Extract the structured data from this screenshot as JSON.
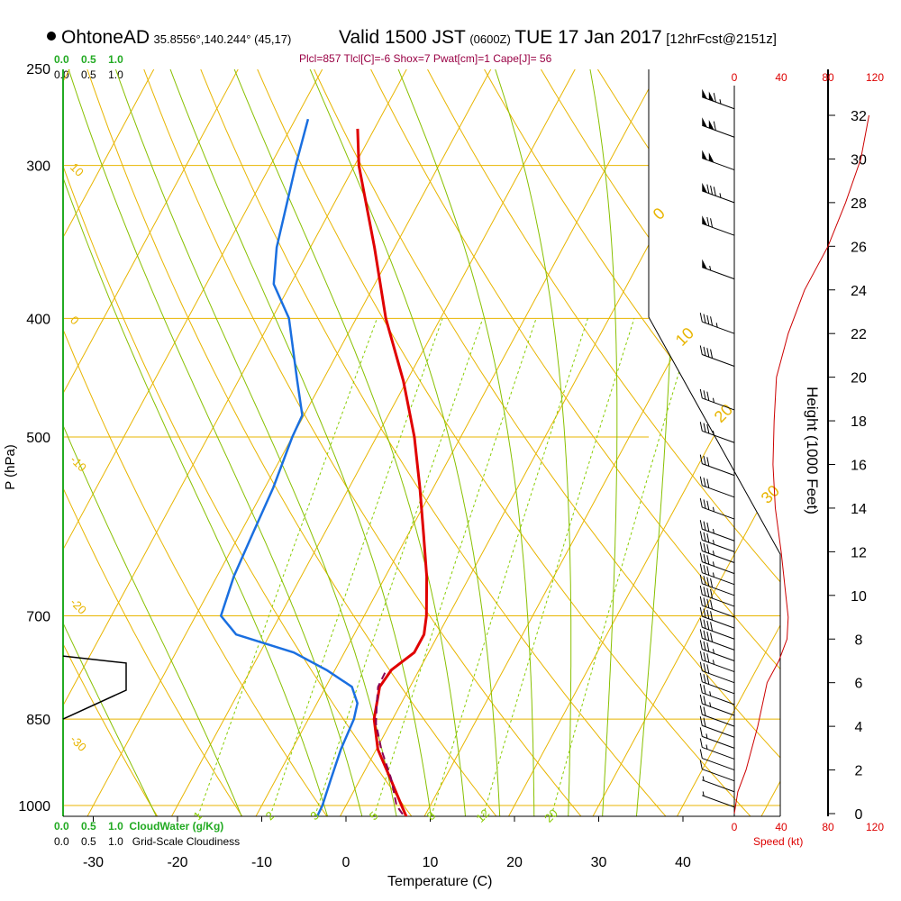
{
  "header": {
    "station": "OhtoneAD",
    "coords": "35.8556°,140.244° (45,17)",
    "valid_prefix": "Valid 1500 JST",
    "valid_utc": "(0600Z)",
    "valid_date": "TUE 17 Jan 2017",
    "forecast": "[12hrFcst@2151z]",
    "indices": "Plcl=857 Tlcl[C]=-6 Shox=7 Pwat[cm]=1 Cape[J]= 56"
  },
  "colors": {
    "isotherm": "#e8b500",
    "dry_adiabat": "#e8b500",
    "moist_adiabat": "#88c000",
    "mixing_ratio": "#88cc00",
    "temperature": "#e00000",
    "dewpoint": "#1a6fe0",
    "parcel": "#880055",
    "cloud": "#22aa22"
  },
  "legend": {
    "cloud_top_scale": [
      "0.0",
      "0.5",
      "1.0"
    ],
    "cloudiness_top_scale": [
      "0.0",
      "0.5",
      "1.0"
    ],
    "cloud_bottom_scale": [
      "0.0",
      "0.5",
      "1.0"
    ],
    "cloud_water_label": "CloudWater (g/Kg)",
    "cloudiness_bottom_scale": [
      "0.0",
      "0.5",
      "1.0"
    ],
    "cloudiness_label": "Grid-Scale Cloudiness",
    "speed_label": "Speed (kt)"
  },
  "chart_data": {
    "type": "line",
    "title": "Skew-T log-P sounding",
    "xlabel": "Temperature (C)",
    "ylabel": "P (hPa)",
    "xlim": [
      -35,
      45
    ],
    "ylim_hpa": [
      1050,
      250
    ],
    "x_ticks": [
      "-30",
      "-20",
      "-10",
      "0",
      "10",
      "20",
      "30",
      "40"
    ],
    "x_tick_values": [
      -30,
      -20,
      -10,
      0,
      10,
      20,
      30,
      40
    ],
    "p_ticks": [
      "250",
      "300",
      "400",
      "500",
      "700",
      "850",
      "1000"
    ],
    "p_tick_values": [
      250,
      300,
      400,
      500,
      700,
      850,
      1000
    ],
    "height_label": "Height (1000 Feet)",
    "height_ticks": [
      "0",
      "2",
      "4",
      "6",
      "8",
      "10",
      "12",
      "14",
      "16",
      "18",
      "20",
      "22",
      "24",
      "26",
      "28",
      "30",
      "32"
    ],
    "height_tick_values": [
      0,
      2,
      4,
      6,
      8,
      10,
      12,
      14,
      16,
      18,
      20,
      22,
      24,
      26,
      28,
      30,
      32
    ],
    "speed_ticks_top": [
      "0",
      "40",
      "80",
      "120"
    ],
    "speed_ticks_bottom": [
      "0",
      "40",
      "80",
      "120"
    ],
    "speed_tick_values": [
      0,
      40,
      80,
      120
    ],
    "isotherm_labels": [
      "10",
      "0",
      "-10",
      "-20",
      "-30"
    ],
    "isotherm_label_values": [
      10,
      0,
      -10,
      -20,
      -30
    ],
    "mixing_ratio_labels": [
      "1",
      "2",
      "3",
      "5",
      "8",
      "12",
      "20"
    ],
    "mixing_ratio_values": [
      1,
      2,
      3,
      5,
      8,
      12,
      20
    ],
    "theta_e_labels": [
      "0",
      "10",
      "20",
      "30"
    ],
    "series": [
      {
        "name": "temperature",
        "points": [
          [
            1035,
            8.7
          ],
          [
            1000,
            6.6
          ],
          [
            950,
            3.5
          ],
          [
            900,
            0.2
          ],
          [
            850,
            -2.2
          ],
          [
            800,
            -3.6
          ],
          [
            775,
            -3.3
          ],
          [
            750,
            -1.7
          ],
          [
            725,
            -1.7
          ],
          [
            700,
            -2.6
          ],
          [
            650,
            -5.1
          ],
          [
            600,
            -8.2
          ],
          [
            550,
            -11.6
          ],
          [
            500,
            -15.5
          ],
          [
            480,
            -17.4
          ],
          [
            450,
            -20.4
          ],
          [
            400,
            -26.5
          ],
          [
            350,
            -32.4
          ],
          [
            300,
            -39.5
          ],
          [
            280,
            -42.0
          ]
        ]
      },
      {
        "name": "dewpoint",
        "points": [
          [
            1035,
            -2.0
          ],
          [
            1025,
            -2.7
          ],
          [
            1000,
            -2.8
          ],
          [
            950,
            -3.5
          ],
          [
            900,
            -4.2
          ],
          [
            850,
            -4.6
          ],
          [
            825,
            -5.2
          ],
          [
            800,
            -6.9
          ],
          [
            775,
            -11.0
          ],
          [
            750,
            -16.0
          ],
          [
            725,
            -24.0
          ],
          [
            700,
            -27.0
          ],
          [
            650,
            -28.0
          ],
          [
            600,
            -28.5
          ],
          [
            550,
            -29.0
          ],
          [
            500,
            -30.0
          ],
          [
            480,
            -30.2
          ],
          [
            450,
            -33.0
          ],
          [
            400,
            -38.0
          ],
          [
            375,
            -42.0
          ],
          [
            350,
            -44.0
          ],
          [
            300,
            -47.0
          ],
          [
            275,
            -48.5
          ]
        ]
      },
      {
        "name": "parcel",
        "points": [
          [
            1035,
            8.7
          ],
          [
            1000,
            6.0
          ],
          [
            950,
            3.6
          ],
          [
            900,
            0.6
          ],
          [
            857,
            -1.7
          ],
          [
            825,
            -2.9
          ],
          [
            800,
            -3.8
          ],
          [
            775,
            -3.9
          ]
        ]
      }
    ],
    "surface_points": {
      "temperature": 8.7,
      "dewpoint": -2.0,
      "pressure": 1035
    },
    "cloudiness": [
      [
        805,
        0.7
      ],
      [
        765,
        0.7
      ]
    ],
    "wind_speed": [
      [
        0,
        0
      ],
      [
        1,
        3
      ],
      [
        2,
        10
      ],
      [
        4,
        20
      ],
      [
        6,
        28
      ],
      [
        7,
        38
      ],
      [
        8,
        45
      ],
      [
        9,
        46
      ],
      [
        10,
        44
      ],
      [
        12,
        40
      ],
      [
        14,
        35
      ],
      [
        16,
        33
      ],
      [
        18,
        34
      ],
      [
        20,
        36
      ],
      [
        22,
        46
      ],
      [
        24,
        60
      ],
      [
        26,
        80
      ],
      [
        28,
        95
      ],
      [
        30,
        108
      ],
      [
        32,
        115
      ]
    ],
    "wind_barbs": [
      {
        "h": 0.3,
        "kt": 5
      },
      {
        "h": 1.0,
        "kt": 5
      },
      {
        "h": 1.5,
        "kt": 10
      },
      {
        "h": 2.0,
        "kt": 10
      },
      {
        "h": 2.5,
        "kt": 15
      },
      {
        "h": 3.0,
        "kt": 15
      },
      {
        "h": 3.5,
        "kt": 20
      },
      {
        "h": 4.0,
        "kt": 20
      },
      {
        "h": 4.5,
        "kt": 25
      },
      {
        "h": 5.0,
        "kt": 25
      },
      {
        "h": 5.5,
        "kt": 30
      },
      {
        "h": 6.0,
        "kt": 30
      },
      {
        "h": 6.5,
        "kt": 35
      },
      {
        "h": 7.0,
        "kt": 35
      },
      {
        "h": 7.5,
        "kt": 40
      },
      {
        "h": 8.0,
        "kt": 40
      },
      {
        "h": 8.5,
        "kt": 40
      },
      {
        "h": 9.0,
        "kt": 40
      },
      {
        "h": 9.5,
        "kt": 40
      },
      {
        "h": 10.0,
        "kt": 40
      },
      {
        "h": 10.5,
        "kt": 35
      },
      {
        "h": 11.0,
        "kt": 35
      },
      {
        "h": 11.5,
        "kt": 35
      },
      {
        "h": 12.0,
        "kt": 35
      },
      {
        "h": 12.5,
        "kt": 35
      },
      {
        "h": 13.5,
        "kt": 35
      },
      {
        "h": 14.5,
        "kt": 30
      },
      {
        "h": 15.5,
        "kt": 30
      },
      {
        "h": 17.0,
        "kt": 35
      },
      {
        "h": 18.5,
        "kt": 35
      },
      {
        "h": 20.5,
        "kt": 40
      },
      {
        "h": 22.0,
        "kt": 45
      },
      {
        "h": 24.5,
        "kt": 55
      },
      {
        "h": 26.5,
        "kt": 70
      },
      {
        "h": 28.0,
        "kt": 85
      },
      {
        "h": 29.5,
        "kt": 100
      },
      {
        "h": 31.0,
        "kt": 110
      },
      {
        "h": 32.3,
        "kt": 115
      }
    ]
  }
}
